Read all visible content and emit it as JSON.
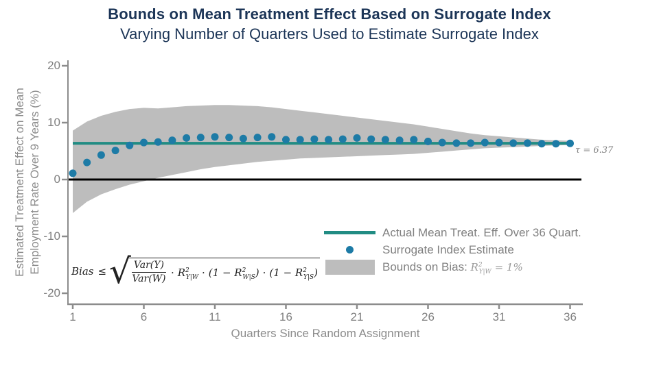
{
  "title": "Bounds on Mean Treatment Effect Based on Surrogate Index",
  "subtitle": "Varying Number of Quarters Used to Estimate Surrogate Index",
  "colors": {
    "title_navy": "#1c3557",
    "dot": "#1d7ba6",
    "mean_line": "#218c83",
    "band": "#bdbdbd",
    "zero_line": "#000000",
    "axis": "#8c8c8c",
    "tick_text": "#7f7f7f",
    "legend_text": "#808080"
  },
  "chart_data": {
    "type": "scatter",
    "title": "Bounds on Mean Treatment Effect Based on Surrogate Index",
    "subtitle": "Varying Number of Quarters Used to Estimate Surrogate Index",
    "xlabel": "Quarters Since Random Assignment",
    "ylabel": "Estimated Treatment Effect on Mean Employment Rate Over 9 Years (%)",
    "ylabel_lines": [
      "Estimated Treatment Effect on Mean",
      "Employment Rate Over 9 Years (%)"
    ],
    "x_ticks": [
      1,
      6,
      11,
      16,
      21,
      26,
      31,
      36
    ],
    "y_ticks": [
      20,
      10,
      0,
      -10,
      -20
    ],
    "xlim": [
      1,
      36
    ],
    "ylim": [
      -22,
      21
    ],
    "grid": false,
    "legend_position": "lower right inside",
    "annotation": "τ = 6.37",
    "x": [
      1,
      2,
      3,
      4,
      5,
      6,
      7,
      8,
      9,
      10,
      11,
      12,
      13,
      14,
      15,
      16,
      17,
      18,
      19,
      20,
      21,
      22,
      23,
      24,
      25,
      26,
      27,
      28,
      29,
      30,
      31,
      32,
      33,
      34,
      35,
      36
    ],
    "series": [
      {
        "name": "Surrogate Index Estimate",
        "type": "scatter",
        "values": [
          1.1,
          3.0,
          4.3,
          5.1,
          6.0,
          6.5,
          6.6,
          6.9,
          7.3,
          7.4,
          7.5,
          7.4,
          7.2,
          7.4,
          7.5,
          7.0,
          7.0,
          7.1,
          7.0,
          7.1,
          7.3,
          7.1,
          7.0,
          6.9,
          7.0,
          6.7,
          6.5,
          6.4,
          6.4,
          6.5,
          6.5,
          6.4,
          6.4,
          6.3,
          6.3,
          6.35
        ]
      },
      {
        "name": "Actual Mean Treat. Eff. Over 36 Quart.",
        "type": "hline",
        "value": 6.37
      },
      {
        "name": "Bounds on Bias",
        "type": "band",
        "upper": [
          8.6,
          10.2,
          11.2,
          11.9,
          12.4,
          12.6,
          12.5,
          12.7,
          12.9,
          13.0,
          13.1,
          13.1,
          13.0,
          12.9,
          12.7,
          12.4,
          12.1,
          11.8,
          11.5,
          11.2,
          10.9,
          10.6,
          10.3,
          10.0,
          9.7,
          9.3,
          8.9,
          8.5,
          8.1,
          7.8,
          7.6,
          7.4,
          7.2,
          7.0,
          6.9,
          6.8
        ],
        "lower": [
          -5.9,
          -3.9,
          -2.6,
          -1.7,
          -0.9,
          -0.3,
          0.3,
          0.8,
          1.3,
          1.8,
          2.2,
          2.5,
          2.8,
          3.1,
          3.3,
          3.5,
          3.7,
          3.8,
          3.9,
          4.0,
          4.1,
          4.2,
          4.3,
          4.4,
          4.5,
          4.7,
          4.9,
          5.1,
          5.3,
          5.5,
          5.6,
          5.7,
          5.8,
          5.9,
          6.0,
          6.05
        ]
      },
      {
        "name": "zero line",
        "type": "hline",
        "value": 0
      }
    ]
  },
  "legend": {
    "items": [
      {
        "swatch": "line",
        "label": "Actual Mean Treat. Eff. Over 36 Quart."
      },
      {
        "swatch": "dot",
        "label": "Surrogate Index Estimate"
      },
      {
        "swatch": "box",
        "label": "Bounds on Bias: ",
        "math": {
          "base": "R",
          "sup": "2",
          "sub": "Y|W",
          "rest": " = 1%"
        }
      }
    ]
  },
  "formula": {
    "lhs": "Bias",
    "rel": "≤",
    "radical": "√",
    "frac_num": "Var(Y)",
    "frac_den": "Var(W)",
    "mult": "·",
    "term1": {
      "base": "R",
      "sup": "2",
      "sub": "Y|W"
    },
    "term2_open": "(1 − ",
    "term2": {
      "base": "R",
      "sup": "2",
      "sub": "W|S"
    },
    "term2_close": ")",
    "term3_open": "(1 − ",
    "term3": {
      "base": "R",
      "sup": "2",
      "sub": "Y|S"
    },
    "term3_close": ")"
  }
}
